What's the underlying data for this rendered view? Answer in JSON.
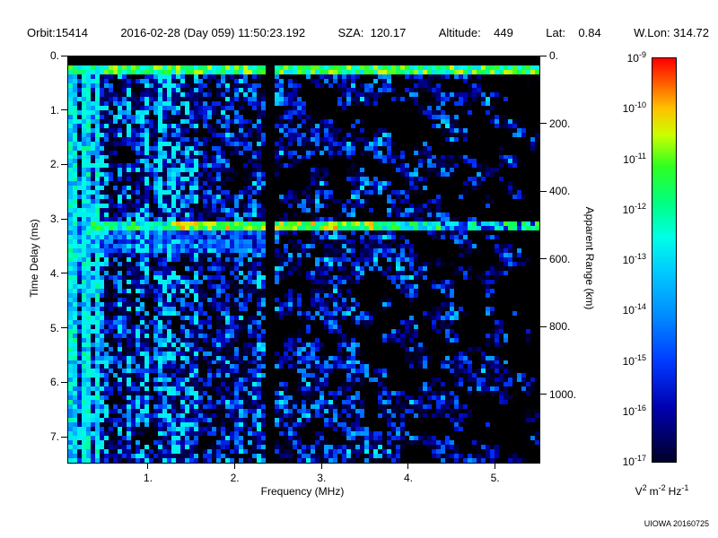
{
  "header": {
    "items": [
      "Orbit:15414",
      "2016-02-28 (Day 059) 11:50:23.192",
      "SZA:  120.17",
      "Altitude:    449",
      "Lat:    0.84",
      "W.Lon: 314.72"
    ]
  },
  "footer": "UIOWA 20160725",
  "chart_data": {
    "type": "heatmap",
    "description": "Radar sounder ionogram: received spectral density vs frequency and time delay; bright horizontal band near 0.2 ms is the transmit pulse, bright band near 3.1 ms is the surface echo, vertical bright lines at low frequency are electron plasma oscillation harmonics, black vertical band near 2.4 MHz is a masked frequency gap",
    "x_axis": {
      "label": "Frequency (MHz)",
      "range": [
        0.07,
        5.5
      ],
      "ticks": [
        {
          "v": 1,
          "label": "1."
        },
        {
          "v": 2,
          "label": "2."
        },
        {
          "v": 3,
          "label": "3."
        },
        {
          "v": 4,
          "label": "4."
        },
        {
          "v": 5,
          "label": "5."
        }
      ]
    },
    "y_axis_left": {
      "label": "Time Delay (ms)",
      "range": [
        0,
        7.46
      ],
      "ticks": [
        {
          "v": 0,
          "label": "0."
        },
        {
          "v": 1,
          "label": "1."
        },
        {
          "v": 2,
          "label": "2."
        },
        {
          "v": 3,
          "label": "3."
        },
        {
          "v": 4,
          "label": "4."
        },
        {
          "v": 5,
          "label": "5."
        },
        {
          "v": 6,
          "label": "6."
        },
        {
          "v": 7,
          "label": "7."
        }
      ]
    },
    "y_axis_right": {
      "label": "Apparent Range (km)",
      "range": [
        0,
        1200
      ],
      "ticks": [
        {
          "v": 0,
          "label": "0."
        },
        {
          "v": 200,
          "label": "200."
        },
        {
          "v": 400,
          "label": "400."
        },
        {
          "v": 600,
          "label": "600."
        },
        {
          "v": 800,
          "label": "800."
        },
        {
          "v": 1000,
          "label": "1000."
        }
      ]
    },
    "colorbar": {
      "scale": "log",
      "mantissa": "10",
      "tick_exponents": [
        "-9",
        "-10",
        "-11",
        "-12",
        "-13",
        "-14",
        "-15",
        "-16",
        "-17"
      ],
      "units_parts": [
        {
          "base": "V",
          "exp": "2"
        },
        {
          "base": "m",
          "exp": "-2"
        },
        {
          "base": "Hz",
          "exp": "-1"
        }
      ],
      "bar_value_range": [
        0.1,
        1.0
      ]
    },
    "colormap": [
      [
        0.0,
        "#000000"
      ],
      [
        0.06,
        "#010108"
      ],
      [
        0.12,
        "#000040"
      ],
      [
        0.22,
        "#0000b0"
      ],
      [
        0.32,
        "#0038ff"
      ],
      [
        0.42,
        "#0088ff"
      ],
      [
        0.52,
        "#00c8ff"
      ],
      [
        0.6,
        "#00ffe8"
      ],
      [
        0.68,
        "#00ff80"
      ],
      [
        0.76,
        "#30ff20"
      ],
      [
        0.83,
        "#ccff00"
      ],
      [
        0.89,
        "#ffc000"
      ],
      [
        0.95,
        "#ff5500"
      ],
      [
        1.0,
        "#ff0000"
      ]
    ],
    "grid": {
      "cols": 105,
      "rows": 91,
      "seed": 20160228
    },
    "features": {
      "top_black_band_ms": 0.14,
      "transmit_pulse": {
        "t_start": 0.14,
        "t_end": 0.31
      },
      "surface_echo": {
        "t_center": 3.1,
        "t_halfwidth": 0.09,
        "f_min": 0.35
      },
      "echo_tail": {
        "t_start_offset": 0.09,
        "t_end_offset": 0.5,
        "f_max": 2.4
      },
      "gap_mhz": [
        2.33,
        2.47
      ],
      "plasma_lines_mhz": [
        0.13,
        0.27,
        0.41
      ],
      "noisy_region_f_max": 1.7,
      "mid_region_f_max": 2.3
    }
  }
}
